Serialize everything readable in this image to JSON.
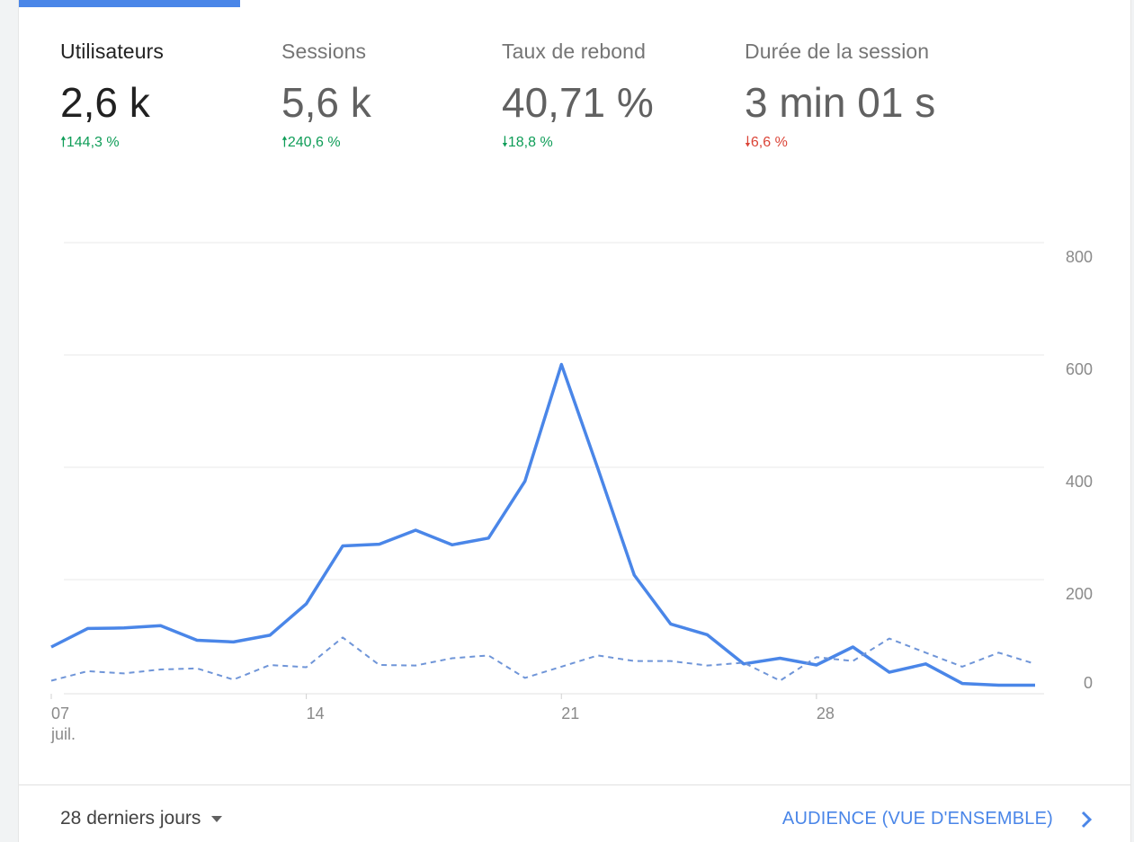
{
  "metrics": [
    {
      "label": "Utilisateurs",
      "value": "2,6 k",
      "change": "144,3 %",
      "direction": "up",
      "color": "#0f9d58"
    },
    {
      "label": "Sessions",
      "value": "5,6 k",
      "change": "240,6 %",
      "direction": "up",
      "color": "#0f9d58"
    },
    {
      "label": "Taux de rebond",
      "value": "40,71 %",
      "change": "18,8 %",
      "direction": "down",
      "color": "#0f9d58"
    },
    {
      "label": "Durée de la session",
      "value": "3 min 01 s",
      "change": "6,6 %",
      "direction": "down",
      "color": "#db4437"
    }
  ],
  "footer": {
    "range_label": "28 derniers jours",
    "report_link": "AUDIENCE (VUE D'ENSEMBLE)"
  },
  "chart_data": {
    "type": "line",
    "ylim": [
      0,
      800
    ],
    "yticks": [
      "0",
      "200",
      "400",
      "600",
      "800"
    ],
    "x_tick_labels": [
      {
        "day": 7,
        "label": "07",
        "sub": "juil."
      },
      {
        "day": 14,
        "label": "14",
        "sub": ""
      },
      {
        "day": 21,
        "label": "21",
        "sub": ""
      },
      {
        "day": 28,
        "label": "28",
        "sub": ""
      }
    ],
    "x": [
      7,
      8,
      9,
      10,
      11,
      12,
      13,
      14,
      15,
      16,
      17,
      18,
      19,
      20,
      21,
      22,
      23,
      24,
      25,
      26,
      27,
      28,
      29,
      30,
      31,
      32,
      33,
      34
    ],
    "series": [
      {
        "style": "solid",
        "color": "#4a86e8",
        "values": [
          80,
          113,
          114,
          118,
          92,
          89,
          101,
          157,
          260,
          263,
          288,
          262,
          274,
          375,
          583,
          398,
          208,
          121,
          102,
          50,
          60,
          48,
          80,
          35,
          50,
          15,
          12,
          12
        ]
      },
      {
        "style": "dashed",
        "color": "#6f95d8",
        "values": [
          20,
          37,
          33,
          40,
          42,
          22,
          48,
          44,
          97,
          48,
          47,
          60,
          65,
          25,
          45,
          65,
          55,
          55,
          47,
          52,
          20,
          62,
          55,
          95,
          70,
          45,
          70,
          50
        ]
      }
    ],
    "grid": true
  }
}
